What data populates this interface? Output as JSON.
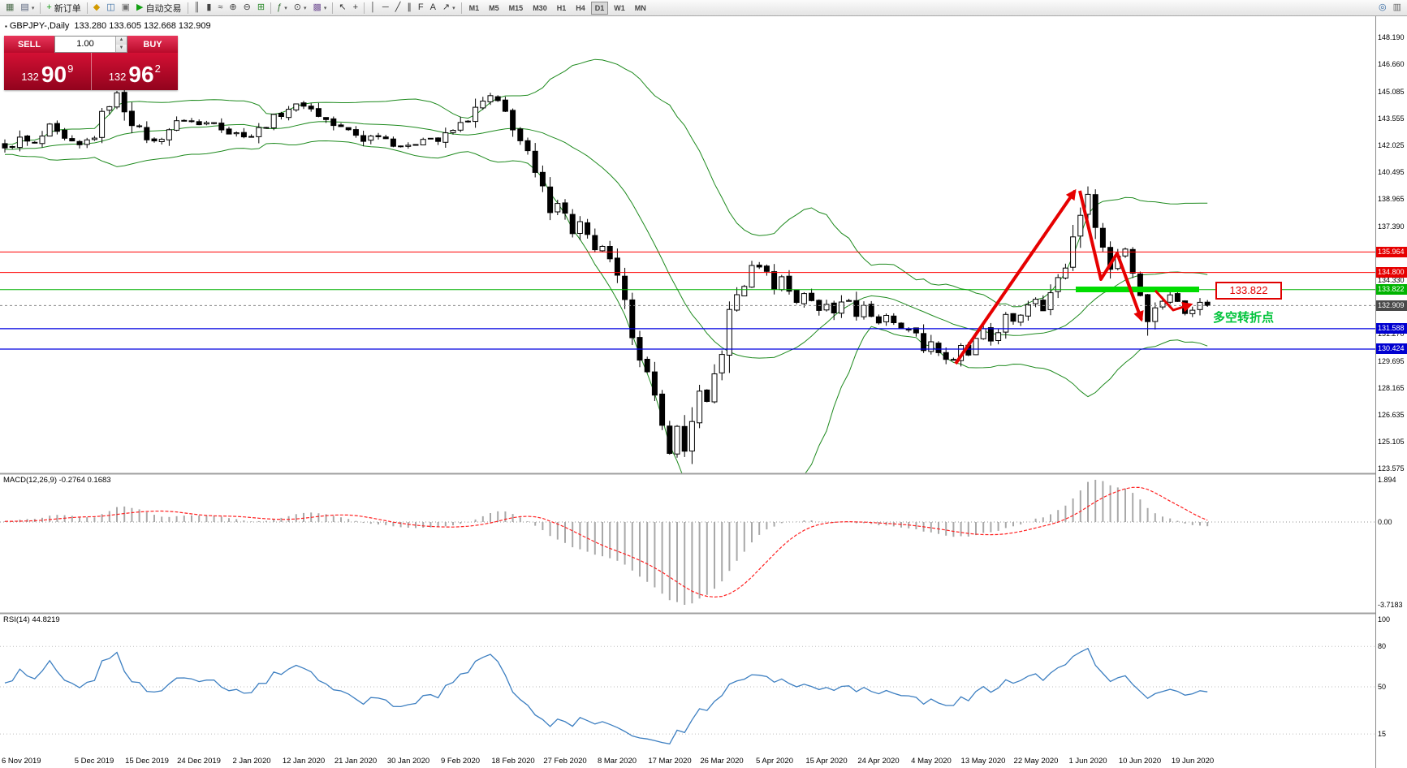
{
  "toolbar": {
    "items": [
      {
        "type": "btn",
        "name": "new-chart",
        "icon": "▦",
        "color": "#4a6a4a"
      },
      {
        "type": "btn",
        "name": "profiles",
        "icon": "▤",
        "color": "#55607a",
        "dd": true
      },
      {
        "type": "sep"
      },
      {
        "type": "btn",
        "name": "new-order",
        "icon": "+",
        "color": "#139a13",
        "label": "新订单"
      },
      {
        "type": "sep"
      },
      {
        "type": "btn",
        "name": "metaeditor",
        "icon": "◆",
        "color": "#d29a00"
      },
      {
        "type": "btn",
        "name": "market-watch",
        "icon": "◫",
        "color": "#3a6ea5"
      },
      {
        "type": "btn",
        "name": "terminal",
        "icon": "▣",
        "color": "#707070"
      },
      {
        "type": "btn",
        "name": "auto-trading",
        "icon": "▶",
        "color": "#13a013",
        "label": "自动交易"
      },
      {
        "type": "sep"
      },
      {
        "type": "btn",
        "name": "bar-chart-mode",
        "icon": "║",
        "color": "#444444"
      },
      {
        "type": "btn",
        "name": "candlestick-mode",
        "icon": "▮",
        "color": "#444444"
      },
      {
        "type": "btn",
        "name": "line-chart-mode",
        "icon": "≈",
        "color": "#444444"
      },
      {
        "type": "btn",
        "name": "zoom-in",
        "icon": "⊕",
        "color": "#444444"
      },
      {
        "type": "btn",
        "name": "zoom-out",
        "icon": "⊖",
        "color": "#444444"
      },
      {
        "type": "btn",
        "name": "tile-windows",
        "icon": "⊞",
        "color": "#2a8a2a"
      },
      {
        "type": "sep"
      },
      {
        "type": "btn",
        "name": "indicators",
        "icon": "ƒ",
        "color": "#2a6a2a",
        "dd": true
      },
      {
        "type": "btn",
        "name": "periods",
        "icon": "⊙",
        "color": "#444444",
        "dd": true
      },
      {
        "type": "btn",
        "name": "templates",
        "icon": "▩",
        "color": "#7a5a9a",
        "dd": true
      },
      {
        "type": "sep"
      },
      {
        "type": "btn",
        "name": "cursor",
        "icon": "↖",
        "color": "#333333"
      },
      {
        "type": "btn",
        "name": "crosshair",
        "icon": "+",
        "color": "#333333"
      },
      {
        "type": "sep"
      },
      {
        "type": "btn",
        "name": "vertical-line",
        "icon": "│",
        "color": "#333333"
      },
      {
        "type": "btn",
        "name": "horizontal-line",
        "icon": "─",
        "color": "#333333"
      },
      {
        "type": "btn",
        "name": "trendline",
        "icon": "╱",
        "color": "#333333"
      },
      {
        "type": "btn",
        "name": "equidistant-channel",
        "icon": "∥",
        "color": "#333333"
      },
      {
        "type": "btn",
        "name": "fibonacci",
        "icon": "F",
        "color": "#333333"
      },
      {
        "type": "btn",
        "name": "text",
        "icon": "A",
        "color": "#333333"
      },
      {
        "type": "btn",
        "name": "arrows-tool",
        "icon": "↗",
        "color": "#333333",
        "dd": true
      },
      {
        "type": "sep"
      }
    ],
    "timeframes": [
      "M1",
      "M5",
      "M15",
      "M30",
      "H1",
      "H4",
      "D1",
      "W1",
      "MN"
    ],
    "active_timeframe": "D1",
    "right_items": [
      {
        "name": "search",
        "icon": "◎",
        "color": "#3a6ea5"
      },
      {
        "name": "window-layout",
        "icon": "▥",
        "color": "#666666"
      }
    ]
  },
  "chart": {
    "title_symbol": "GBPJPY-,Daily",
    "title_ohlc": "133.280 133.605 132.668 132.909"
  },
  "one_click": {
    "sell_label": "SELL",
    "buy_label": "BUY",
    "volume": "1.00",
    "sell_small": "132",
    "sell_big": "90",
    "sell_sup": "9",
    "buy_small": "132",
    "buy_big": "96",
    "buy_sup": "2"
  },
  "annotations": {
    "pivot_price": "133.822",
    "turning_point_text": "多空转折点"
  },
  "macd": {
    "label": "MACD(12,26,9) -0.2764 0.1683",
    "scale": [
      "1.894",
      "0.00",
      "-3.7183"
    ]
  },
  "rsi": {
    "label": "RSI(14) 44.8219",
    "scale": [
      "100",
      "80",
      "50",
      "15"
    ]
  },
  "price_scale": {
    "ticks": [
      "148.190",
      "146.660",
      "145.085",
      "143.555",
      "142.025",
      "140.495",
      "138.965",
      "137.390",
      "134.330",
      "131.270",
      "129.695",
      "128.165",
      "126.635",
      "125.105",
      "123.575"
    ],
    "levels": [
      {
        "value": "135.964",
        "type": "red"
      },
      {
        "value": "134.800",
        "type": "red"
      },
      {
        "value": "133.822",
        "type": "green"
      },
      {
        "value": "132.909",
        "type": "current"
      },
      {
        "value": "131.588",
        "type": "blue"
      },
      {
        "value": "130.424",
        "type": "blue"
      }
    ]
  },
  "chart_data": {
    "type": "candlestick",
    "symbol": "GBPJPY-",
    "timeframe": "Daily",
    "ohlc_display": {
      "open": 133.28,
      "high": 133.605,
      "low": 132.668,
      "close": 132.909
    },
    "last_close": 132.909,
    "price_axis_range": [
      123.575,
      148.19
    ],
    "horizontal_levels": [
      {
        "price": 135.964,
        "color": "red",
        "role": "resistance"
      },
      {
        "price": 134.8,
        "color": "red",
        "role": "resistance"
      },
      {
        "price": 133.822,
        "color": "green",
        "role": "pivot"
      },
      {
        "price": 132.909,
        "color": "gray",
        "role": "current-price"
      },
      {
        "price": 131.588,
        "color": "blue",
        "role": "support"
      },
      {
        "price": 130.424,
        "color": "blue",
        "role": "support"
      }
    ],
    "candle_count": 162,
    "close_anchors": [
      [
        0,
        141.9
      ],
      [
        2,
        142.4
      ],
      [
        4,
        142.1
      ],
      [
        6,
        143.0
      ],
      [
        8,
        142.3
      ],
      [
        10,
        142.0
      ],
      [
        12,
        142.6
      ],
      [
        14,
        144.6
      ],
      [
        15,
        144.9
      ],
      [
        16,
        144.2
      ],
      [
        18,
        142.8
      ],
      [
        20,
        142.2
      ],
      [
        22,
        143.0
      ],
      [
        24,
        143.6
      ],
      [
        26,
        143.2
      ],
      [
        28,
        143.5
      ],
      [
        30,
        142.8
      ],
      [
        33,
        142.6
      ],
      [
        35,
        143.3
      ],
      [
        38,
        144.2
      ],
      [
        40,
        144.4
      ],
      [
        42,
        143.8
      ],
      [
        44,
        143.2
      ],
      [
        46,
        142.9
      ],
      [
        48,
        142.4
      ],
      [
        50,
        142.7
      ],
      [
        52,
        142.2
      ],
      [
        54,
        141.9
      ],
      [
        56,
        142.6
      ],
      [
        58,
        142.3
      ],
      [
        60,
        142.9
      ],
      [
        62,
        143.6
      ],
      [
        64,
        144.5
      ],
      [
        65,
        144.8
      ],
      [
        66,
        144.4
      ],
      [
        67,
        143.9
      ],
      [
        68,
        143.2
      ],
      [
        69,
        142.3
      ],
      [
        70,
        141.4
      ],
      [
        71,
        140.3
      ],
      [
        72,
        139.4
      ],
      [
        73,
        138.6
      ],
      [
        74,
        138.9
      ],
      [
        75,
        138.0
      ],
      [
        76,
        137.2
      ],
      [
        77,
        137.6
      ],
      [
        78,
        136.6
      ],
      [
        79,
        135.8
      ],
      [
        80,
        136.4
      ],
      [
        81,
        135.2
      ],
      [
        82,
        134.3
      ],
      [
        83,
        132.8
      ],
      [
        84,
        131.5
      ],
      [
        85,
        130.2
      ],
      [
        86,
        128.9
      ],
      [
        87,
        127.4
      ],
      [
        88,
        125.9
      ],
      [
        89,
        124.9
      ],
      [
        90,
        125.8
      ],
      [
        91,
        124.6
      ],
      [
        92,
        126.5
      ],
      [
        93,
        127.8
      ],
      [
        94,
        127.1
      ],
      [
        95,
        128.9
      ],
      [
        96,
        130.4
      ],
      [
        97,
        132.4
      ],
      [
        98,
        133.5
      ],
      [
        99,
        134.2
      ],
      [
        100,
        134.9
      ],
      [
        101,
        135.3
      ],
      [
        102,
        134.7
      ],
      [
        103,
        134.1
      ],
      [
        104,
        134.5
      ],
      [
        105,
        133.8
      ],
      [
        106,
        133.2
      ],
      [
        107,
        133.7
      ],
      [
        108,
        133.0
      ],
      [
        109,
        132.6
      ],
      [
        110,
        133.1
      ],
      [
        111,
        132.7
      ],
      [
        112,
        133.4
      ],
      [
        113,
        133.0
      ],
      [
        114,
        132.5
      ],
      [
        115,
        132.9
      ],
      [
        116,
        132.3
      ],
      [
        117,
        131.9
      ],
      [
        118,
        132.5
      ],
      [
        119,
        132.0
      ],
      [
        120,
        131.4
      ],
      [
        121,
        131.8
      ],
      [
        122,
        131.1
      ],
      [
        123,
        130.6
      ],
      [
        124,
        130.9
      ],
      [
        125,
        130.3
      ],
      [
        126,
        129.9
      ],
      [
        127,
        129.7
      ],
      [
        128,
        130.4
      ],
      [
        129,
        130.1
      ],
      [
        130,
        130.8
      ],
      [
        131,
        131.3
      ],
      [
        132,
        130.9
      ],
      [
        133,
        131.6
      ],
      [
        134,
        132.2
      ],
      [
        135,
        131.8
      ],
      [
        136,
        132.5
      ],
      [
        137,
        133.1
      ],
      [
        138,
        133.4
      ],
      [
        139,
        132.9
      ],
      [
        140,
        133.6
      ],
      [
        141,
        134.3
      ],
      [
        142,
        135.2
      ],
      [
        143,
        136.8
      ],
      [
        144,
        138.4
      ],
      [
        145,
        139.0
      ],
      [
        146,
        137.8
      ],
      [
        147,
        136.2
      ],
      [
        148,
        135.0
      ],
      [
        149,
        135.9
      ],
      [
        150,
        136.2
      ],
      [
        151,
        134.9
      ],
      [
        152,
        133.6
      ],
      [
        153,
        132.4
      ],
      [
        154,
        132.7
      ],
      [
        155,
        133.3
      ],
      [
        156,
        133.6
      ],
      [
        157,
        133.0
      ],
      [
        158,
        132.5
      ],
      [
        159,
        132.9
      ],
      [
        160,
        133.3
      ],
      [
        161,
        132.909
      ]
    ],
    "indicators": {
      "bollinger": {
        "period": 20,
        "deviation": 2,
        "color": "green"
      },
      "macd": {
        "params": "12,26,9",
        "main": -0.2764,
        "signal": 0.1683,
        "scale_max": 1.894,
        "scale_min": -3.7183
      },
      "rsi": {
        "period": 14,
        "value": 44.8219,
        "levels": [
          80,
          50,
          15
        ]
      }
    },
    "dates": [
      "6 Nov 2019",
      "5 Dec 2019",
      "15 Dec 2019",
      "24 Dec 2019",
      "2 Jan 2020",
      "12 Jan 2020",
      "21 Jan 2020",
      "30 Jan 2020",
      "9 Feb 2020",
      "18 Feb 2020",
      "27 Feb 2020",
      "8 Mar 2020",
      "17 Mar 2020",
      "26 Mar 2020",
      "5 Apr 2020",
      "15 Apr 2020",
      "24 Apr 2020",
      "4 May 2020",
      "13 May 2020",
      "22 May 2020",
      "1 Jun 2020",
      "10 Jun 2020",
      "19 Jun 2020"
    ]
  }
}
